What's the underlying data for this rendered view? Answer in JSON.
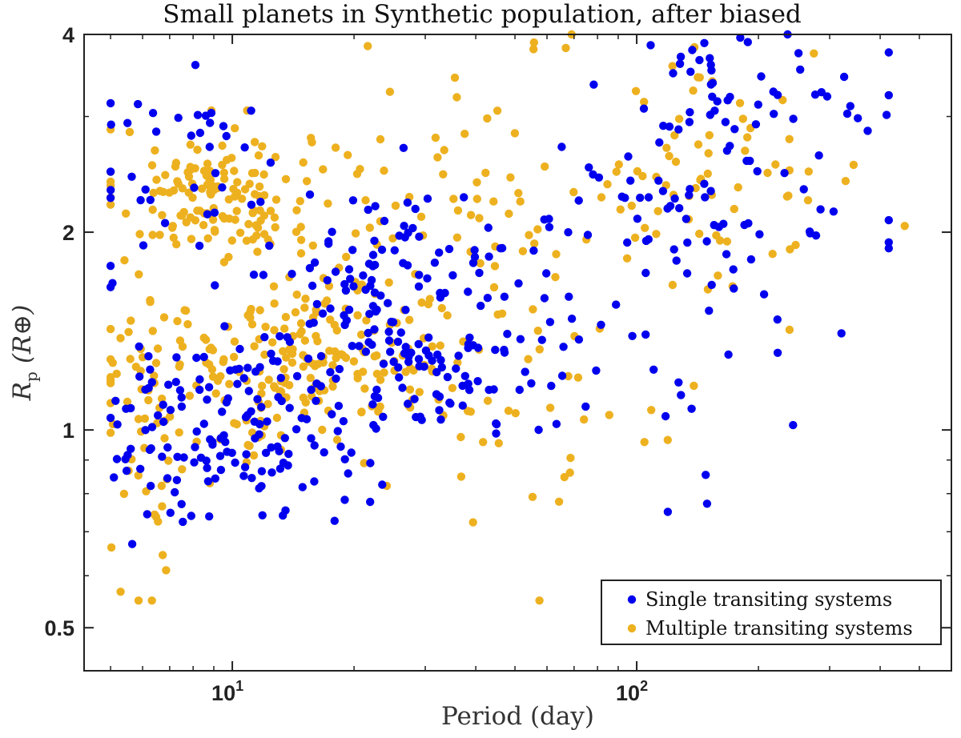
{
  "chart_data": {
    "type": "scatter",
    "title": "Small planets in Synthetic population, after biased",
    "xlabel": "Period (day)",
    "ylabel": {
      "symbol": "R",
      "subscript": "p",
      "unit": "(R⊕)"
    },
    "xscale": "log",
    "yscale": "log",
    "xlim": [
      4.3,
      600
    ],
    "ylim": [
      0.43,
      4.0
    ],
    "x_ticks": [
      {
        "value": 10,
        "base": "10",
        "exponent": "1"
      },
      {
        "value": 100,
        "base": "10",
        "exponent": "2"
      }
    ],
    "y_ticks": [
      {
        "value": 0.5,
        "label": "0.5"
      },
      {
        "value": 1,
        "label": "1"
      },
      {
        "value": 2,
        "label": "2"
      },
      {
        "value": 4,
        "label": "4"
      }
    ],
    "legend_position": "bottom-right",
    "series": [
      {
        "name": "Single transiting systems",
        "color": "#0000ee",
        "x_range": [
          5,
          420
        ],
        "y_range": [
          0.6,
          4.0
        ]
      },
      {
        "name": "Multiple transiting systems",
        "color": "#edb120",
        "x_range": [
          5,
          460
        ],
        "y_range": [
          0.55,
          4.0
        ]
      }
    ]
  }
}
